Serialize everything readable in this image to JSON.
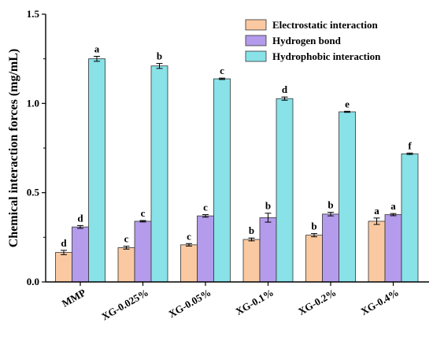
{
  "chart_data": {
    "type": "bar",
    "ylabel": "Chemical interaction forces (mg/mL)",
    "xlabel": "",
    "ylim": [
      0,
      1.5
    ],
    "yticks": [
      "0.0",
      "0.5",
      "1.0",
      "1.5"
    ],
    "legend_position": "top-right",
    "grid": false,
    "categories": [
      "MMP",
      "XG-0.025%",
      "XG-0.05%",
      "XG-0.1%",
      "XG-0.2%",
      "XG-0.4%"
    ],
    "series": [
      {
        "name": "Electrostatic interaction",
        "color": "#FBC9A1",
        "values": [
          0.165,
          0.192,
          0.208,
          0.238,
          0.262,
          0.34
        ],
        "errors": [
          0.012,
          0.008,
          0.007,
          0.008,
          0.009,
          0.018
        ],
        "letters": [
          "d",
          "c",
          "c",
          "b",
          "b",
          "a"
        ]
      },
      {
        "name": "Hydrogen bond",
        "color": "#B49BEB",
        "values": [
          0.308,
          0.34,
          0.37,
          0.36,
          0.38,
          0.377
        ],
        "errors": [
          0.008,
          0.004,
          0.007,
          0.025,
          0.01,
          0.006
        ],
        "letters": [
          "d",
          "c",
          "c",
          "b",
          "b",
          "a"
        ]
      },
      {
        "name": "Hydrophobic interaction",
        "color": "#88E2E8",
        "values": [
          1.25,
          1.21,
          1.138,
          1.027,
          0.953,
          0.718
        ],
        "errors": [
          0.014,
          0.014,
          0.004,
          0.009,
          0.003,
          0.004
        ],
        "letters": [
          "a",
          "b",
          "c",
          "d",
          "e",
          "f"
        ]
      }
    ]
  }
}
